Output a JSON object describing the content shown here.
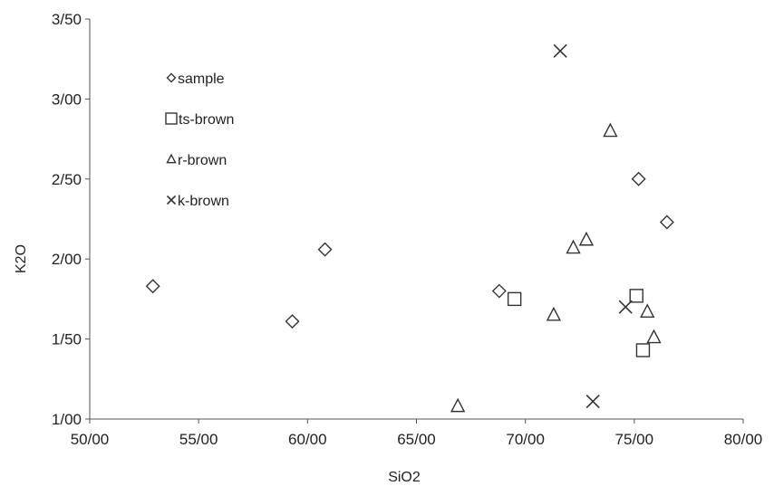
{
  "chart_data": {
    "type": "scatter",
    "xlabel": "SiO2",
    "ylabel": "K2O",
    "xlim": [
      50,
      80
    ],
    "ylim": [
      1,
      3.5
    ],
    "x_ticks": [
      50,
      55,
      60,
      65,
      70,
      75,
      80
    ],
    "x_tick_labels": [
      "50/00",
      "55/00",
      "60/00",
      "65/00",
      "70/00",
      "75/00",
      "80/00"
    ],
    "y_ticks": [
      1,
      1.5,
      2,
      2.5,
      3,
      3.5
    ],
    "y_tick_labels": [
      "1/00",
      "1/50",
      "2/00",
      "2/50",
      "3/00",
      "3/50"
    ],
    "grid": false,
    "legend_position": "top-left",
    "series": [
      {
        "name": "sample",
        "marker": "diamond",
        "points": [
          [
            52.9,
            1.83
          ],
          [
            59.3,
            1.61
          ],
          [
            60.8,
            2.06
          ],
          [
            68.8,
            1.8
          ],
          [
            75.2,
            2.5
          ],
          [
            76.5,
            2.23
          ]
        ]
      },
      {
        "name": "ts-brown",
        "marker": "square",
        "points": [
          [
            69.5,
            1.75
          ],
          [
            75.1,
            1.77
          ],
          [
            75.4,
            1.43
          ]
        ]
      },
      {
        "name": "r-brown",
        "marker": "triangle",
        "points": [
          [
            66.9,
            1.08
          ],
          [
            71.3,
            1.65
          ],
          [
            72.2,
            2.07
          ],
          [
            72.8,
            2.12
          ],
          [
            73.9,
            2.8
          ],
          [
            75.6,
            1.67
          ],
          [
            75.9,
            1.51
          ]
        ]
      },
      {
        "name": "k-brown",
        "marker": "x",
        "points": [
          [
            71.6,
            3.3
          ],
          [
            73.1,
            1.11
          ],
          [
            74.6,
            1.7
          ]
        ]
      }
    ]
  }
}
